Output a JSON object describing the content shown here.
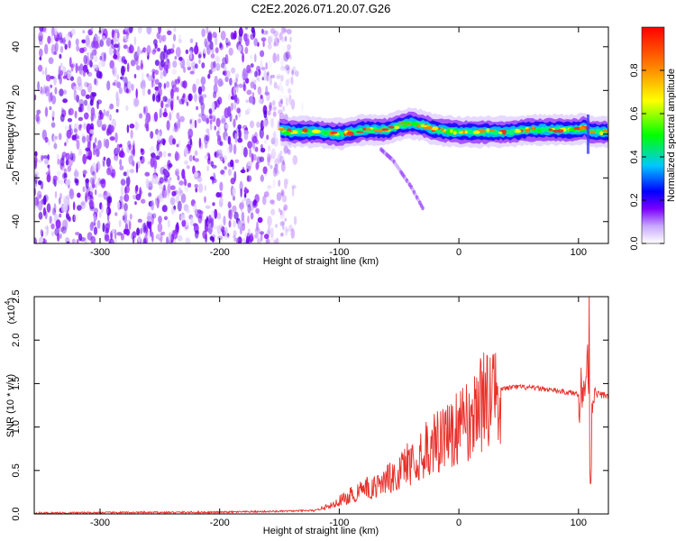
{
  "title": "C2E2.2026.071.20.07.G26",
  "chart_data": [
    {
      "type": "heatmap",
      "xlabel": "Height of straight line (km)",
      "ylabel": "Frequency (Hz)",
      "xlim": [
        -355,
        125
      ],
      "ylim": [
        -50,
        49
      ],
      "x_ticks": [
        -300,
        -200,
        -100,
        0,
        100
      ],
      "x_tick_labels": [
        "-300",
        "-200",
        "-100",
        "0",
        "100"
      ],
      "y_ticks": [
        -40,
        -20,
        0,
        20,
        40
      ],
      "y_tick_labels": [
        "-40",
        "-20",
        "0",
        "20",
        "40"
      ],
      "colorbar": {
        "label": "Normalized spectral amplitude",
        "range": [
          0,
          1
        ],
        "ticks": [
          0.0,
          0.2,
          0.4,
          0.6,
          0.8
        ],
        "tick_labels": [
          "0.0",
          "0.2",
          "0.4",
          "0.6",
          "0.8"
        ],
        "colormap": [
          "#ffffff",
          "#7b00ff",
          "#0000ff",
          "#00c8ff",
          "#00ff00",
          "#ffff00",
          "#ff8000",
          "#ff0000"
        ]
      },
      "noise_region_x": [
        -355,
        -140
      ],
      "ridge": {
        "x": [
          -150,
          -140,
          -120,
          -100,
          -80,
          -60,
          -50,
          -40,
          -30,
          -20,
          0,
          20,
          40,
          60,
          80,
          100,
          105,
          110,
          125
        ],
        "y": [
          2,
          1,
          1,
          0,
          2,
          2,
          4,
          5,
          4,
          2,
          1,
          1,
          1,
          2,
          2,
          2,
          3,
          1,
          1
        ]
      },
      "branch": {
        "x": [
          -65,
          -55,
          -45,
          -40,
          -35,
          -30
        ],
        "y": [
          -7,
          -12,
          -20,
          -24,
          -29,
          -34
        ]
      }
    },
    {
      "type": "line",
      "xlabel": "Height of straight line (km)",
      "ylabel": "SNR (10 * v/v)",
      "scale_label_prefix": "(x10",
      "scale_label_exp": "4",
      "scale_label_suffix": ")",
      "xlim": [
        -355,
        125
      ],
      "ylim": [
        0,
        2.5
      ],
      "x_ticks": [
        -300,
        -200,
        -100,
        0,
        100
      ],
      "x_tick_labels": [
        "-300",
        "-200",
        "-100",
        "0",
        "100"
      ],
      "y_ticks": [
        0.0,
        0.5,
        1.0,
        1.5,
        2.0,
        2.5
      ],
      "y_tick_labels": [
        "0.0",
        "0.5",
        "1.0",
        "1.5",
        "2.0",
        "2.5"
      ],
      "series": [
        {
          "color": "#e8302a",
          "x": [
            -355,
            -300,
            -200,
            -150,
            -120,
            -110,
            -100,
            -90,
            -80,
            -70,
            -60,
            -50,
            -40,
            -30,
            -20,
            -10,
            0,
            10,
            20,
            30,
            40,
            50,
            60,
            70,
            80,
            90,
            100,
            105,
            108,
            110,
            112,
            115,
            125
          ],
          "y": [
            0.01,
            0.015,
            0.02,
            0.03,
            0.04,
            0.08,
            0.15,
            0.22,
            0.28,
            0.33,
            0.4,
            0.5,
            0.6,
            0.72,
            0.8,
            0.92,
            1.0,
            1.12,
            1.28,
            1.4,
            1.45,
            1.46,
            1.45,
            1.44,
            1.42,
            1.4,
            1.38,
            1.45,
            1.7,
            0.4,
            1.5,
            1.38,
            1.36
          ]
        }
      ]
    }
  ]
}
